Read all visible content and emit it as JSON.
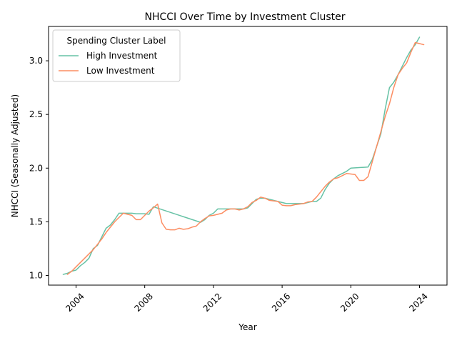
{
  "chart_data": {
    "type": "line",
    "title": "NHCCI Over Time by Investment Cluster",
    "xlabel": "Year",
    "ylabel": "NHCCI (Seasonally Adjusted)",
    "xlim": [
      2002.4,
      2025.6
    ],
    "ylim": [
      0.91,
      3.32
    ],
    "x_ticks": [
      2004,
      2008,
      2012,
      2016,
      2020,
      2024
    ],
    "y_ticks": [
      1.0,
      1.5,
      2.0,
      2.5,
      3.0
    ],
    "y_tick_labels": [
      "1.0",
      "1.5",
      "2.0",
      "2.5",
      "3.0"
    ],
    "grid": false,
    "legend": {
      "title": "Spending Cluster Label",
      "position": "top-left"
    },
    "series": [
      {
        "name": "High Investment",
        "color": "#66c2a5",
        "x": [
          2003.25,
          2003.5,
          2003.75,
          2004.0,
          2004.25,
          2004.5,
          2004.75,
          2005.0,
          2005.25,
          2005.5,
          2005.75,
          2006.0,
          2006.25,
          2006.5,
          2006.75,
          2007.0,
          2007.25,
          2007.5,
          2007.75,
          2008.0,
          2008.25,
          2008.5,
          2011.25,
          2011.5,
          2011.75,
          2012.0,
          2012.25,
          2012.5,
          2012.75,
          2013.0,
          2013.25,
          2013.5,
          2013.75,
          2014.0,
          2014.25,
          2014.5,
          2014.75,
          2015.0,
          2015.25,
          2015.5,
          2015.75,
          2016.0,
          2016.25,
          2016.5,
          2016.75,
          2017.0,
          2017.25,
          2017.5,
          2017.75,
          2018.0,
          2018.25,
          2018.5,
          2018.75,
          2019.0,
          2019.25,
          2019.5,
          2019.75,
          2020.0,
          2021.0,
          2021.25,
          2021.5,
          2021.75,
          2022.0,
          2022.25,
          2022.5,
          2022.75,
          2023.0,
          2023.25,
          2023.5,
          2023.75,
          2024.0
        ],
        "values": [
          1.01,
          1.02,
          1.04,
          1.05,
          1.09,
          1.12,
          1.16,
          1.25,
          1.28,
          1.36,
          1.44,
          1.47,
          1.52,
          1.58,
          1.58,
          1.58,
          1.58,
          1.575,
          1.575,
          1.575,
          1.57,
          1.64,
          1.495,
          1.52,
          1.56,
          1.58,
          1.62,
          1.62,
          1.62,
          1.62,
          1.62,
          1.62,
          1.62,
          1.63,
          1.67,
          1.71,
          1.72,
          1.72,
          1.71,
          1.7,
          1.69,
          1.68,
          1.67,
          1.67,
          1.67,
          1.67,
          1.67,
          1.68,
          1.69,
          1.69,
          1.72,
          1.8,
          1.86,
          1.9,
          1.93,
          1.95,
          1.97,
          2.0,
          2.01,
          2.08,
          2.2,
          2.32,
          2.55,
          2.75,
          2.8,
          2.87,
          2.95,
          3.03,
          3.1,
          3.15,
          3.22
        ]
      },
      {
        "name": "Low Investment",
        "color": "#fc8d62",
        "x": [
          2003.5,
          2003.75,
          2004.0,
          2004.25,
          2004.5,
          2004.75,
          2005.0,
          2005.25,
          2005.5,
          2005.75,
          2006.0,
          2006.25,
          2006.5,
          2006.75,
          2007.0,
          2007.25,
          2007.5,
          2007.75,
          2008.0,
          2008.25,
          2008.5,
          2008.75,
          2009.0,
          2009.25,
          2009.5,
          2009.75,
          2010.0,
          2010.25,
          2010.5,
          2010.75,
          2011.0,
          2011.25,
          2011.5,
          2011.75,
          2012.0,
          2012.25,
          2012.5,
          2012.75,
          2013.0,
          2013.25,
          2013.5,
          2013.75,
          2014.0,
          2014.25,
          2014.5,
          2014.75,
          2015.0,
          2015.25,
          2015.5,
          2015.75,
          2016.0,
          2016.25,
          2016.5,
          2016.75,
          2017.0,
          2017.25,
          2017.5,
          2017.75,
          2018.0,
          2018.25,
          2018.5,
          2018.75,
          2019.0,
          2019.25,
          2019.5,
          2019.75,
          2020.0,
          2020.25,
          2020.5,
          2020.75,
          2021.0,
          2021.25,
          2021.5,
          2021.75,
          2022.0,
          2022.25,
          2022.5,
          2022.75,
          2023.0,
          2023.25,
          2023.5,
          2023.75,
          2024.0,
          2024.25
        ],
        "values": [
          1.01,
          1.04,
          1.08,
          1.12,
          1.16,
          1.2,
          1.24,
          1.29,
          1.34,
          1.4,
          1.45,
          1.5,
          1.54,
          1.58,
          1.57,
          1.56,
          1.52,
          1.52,
          1.56,
          1.6,
          1.63,
          1.665,
          1.49,
          1.43,
          1.425,
          1.425,
          1.44,
          1.43,
          1.435,
          1.45,
          1.46,
          1.5,
          1.53,
          1.555,
          1.56,
          1.57,
          1.58,
          1.61,
          1.62,
          1.62,
          1.61,
          1.62,
          1.64,
          1.68,
          1.7,
          1.73,
          1.72,
          1.7,
          1.695,
          1.69,
          1.655,
          1.65,
          1.65,
          1.66,
          1.665,
          1.67,
          1.685,
          1.69,
          1.73,
          1.78,
          1.83,
          1.87,
          1.9,
          1.91,
          1.93,
          1.95,
          1.945,
          1.94,
          1.885,
          1.885,
          1.92,
          2.06,
          2.2,
          2.34,
          2.48,
          2.6,
          2.75,
          2.87,
          2.93,
          2.98,
          3.08,
          3.17,
          3.16,
          3.15
        ]
      }
    ]
  }
}
